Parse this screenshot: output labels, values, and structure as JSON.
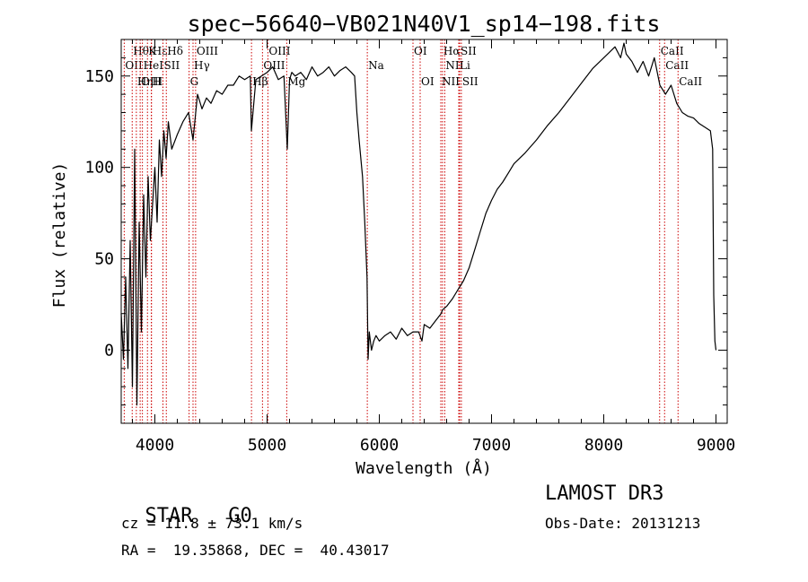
{
  "chart_data": {
    "type": "line",
    "title": "spec−56640−VB021N40V1_sp14−198.fits",
    "xlabel": "Wavelength (Å)",
    "ylabel": "Flux (relative)",
    "xlim": [
      3700,
      9100
    ],
    "ylim": [
      -40,
      170
    ],
    "xticks": [
      4000,
      5000,
      6000,
      7000,
      8000,
      9000
    ],
    "yticks": [
      0,
      50,
      100,
      150
    ],
    "series": [
      {
        "name": "flux",
        "x": [
          3700,
          3720,
          3740,
          3760,
          3780,
          3800,
          3820,
          3840,
          3860,
          3880,
          3900,
          3920,
          3940,
          3960,
          3980,
          4000,
          4020,
          4040,
          4060,
          4080,
          4100,
          4120,
          4150,
          4200,
          4250,
          4300,
          4340,
          4380,
          4420,
          4460,
          4500,
          4550,
          4600,
          4650,
          4700,
          4750,
          4800,
          4850,
          4860,
          4900,
          4950,
          5000,
          5050,
          5100,
          5150,
          5180,
          5200,
          5220,
          5250,
          5300,
          5350,
          5400,
          5450,
          5500,
          5550,
          5600,
          5650,
          5700,
          5750,
          5780,
          5800,
          5820,
          5850,
          5870,
          5890,
          5900,
          5910,
          5930,
          5950,
          5970,
          6000,
          6050,
          6100,
          6150,
          6200,
          6250,
          6300,
          6350,
          6380,
          6400,
          6450,
          6500,
          6550,
          6563,
          6600,
          6650,
          6700,
          6750,
          6800,
          6850,
          6900,
          6950,
          7000,
          7050,
          7100,
          7150,
          7200,
          7300,
          7400,
          7500,
          7600,
          7700,
          7800,
          7900,
          8000,
          8050,
          8100,
          8150,
          8180,
          8200,
          8250,
          8300,
          8350,
          8400,
          8450,
          8500,
          8550,
          8600,
          8650,
          8700,
          8750,
          8800,
          8850,
          8900,
          8950,
          8970,
          8980,
          8990,
          9000
        ],
        "y": [
          20,
          -5,
          40,
          -10,
          60,
          -20,
          110,
          -30,
          70,
          10,
          85,
          40,
          95,
          60,
          80,
          100,
          70,
          115,
          95,
          120,
          105,
          125,
          110,
          118,
          125,
          130,
          115,
          140,
          132,
          138,
          135,
          142,
          140,
          145,
          145,
          150,
          148,
          150,
          120,
          148,
          150,
          152,
          155,
          148,
          150,
          110,
          148,
          152,
          150,
          152,
          148,
          155,
          150,
          152,
          155,
          150,
          153,
          155,
          152,
          150,
          130,
          115,
          95,
          70,
          40,
          -5,
          10,
          0,
          5,
          8,
          5,
          8,
          10,
          6,
          12,
          8,
          10,
          10,
          5,
          14,
          12,
          16,
          20,
          22,
          24,
          28,
          33,
          38,
          45,
          55,
          65,
          75,
          82,
          88,
          92,
          97,
          102,
          108,
          115,
          123,
          130,
          138,
          146,
          154,
          160,
          163,
          166,
          160,
          168,
          162,
          158,
          152,
          158,
          150,
          160,
          145,
          140,
          145,
          135,
          130,
          128,
          127,
          124,
          122,
          120,
          110,
          30,
          5,
          0
        ]
      }
    ],
    "lines": [
      {
        "name": "Hε",
        "x": 3970,
        "side": "top",
        "row": 0
      },
      {
        "name": "Hθ",
        "x": 3798,
        "side": "top",
        "row": 0
      },
      {
        "name": "K",
        "x": 3934,
        "side": "top",
        "row": 0
      },
      {
        "name": "Hδ",
        "x": 4102,
        "side": "top",
        "row": 0
      },
      {
        "name": "OIII",
        "x": 4363,
        "side": "top",
        "row": 0
      },
      {
        "name": "OIII",
        "x": 5007,
        "side": "top",
        "row": 0
      },
      {
        "name": "OI",
        "x": 6300,
        "side": "top",
        "row": 0
      },
      {
        "name": "Hα",
        "x": 6563,
        "side": "top",
        "row": 0
      },
      {
        "name": "SII",
        "x": 6716,
        "side": "top",
        "row": 0
      },
      {
        "name": "CaII",
        "x": 8498,
        "side": "top",
        "row": 0
      },
      {
        "name": "OII",
        "x": 3727,
        "side": "top",
        "row": 1
      },
      {
        "name": "HeI",
        "x": 3889,
        "side": "top",
        "row": 1
      },
      {
        "name": "SII",
        "x": 4072,
        "side": "top",
        "row": 1
      },
      {
        "name": "Hγ",
        "x": 4340,
        "side": "top",
        "row": 1
      },
      {
        "name": "OIII",
        "x": 4959,
        "side": "top",
        "row": 1
      },
      {
        "name": "Na",
        "x": 5893,
        "side": "top",
        "row": 1
      },
      {
        "name": "NII",
        "x": 6583,
        "side": "top",
        "row": 1
      },
      {
        "name": "Li",
        "x": 6708,
        "side": "top",
        "row": 1
      },
      {
        "name": "CaII",
        "x": 8542,
        "side": "top",
        "row": 1
      },
      {
        "name": "OIII",
        "x": 3869,
        "side": "top",
        "row": 2
      },
      {
        "name": "Hη",
        "x": 3835,
        "side": "top",
        "row": 2
      },
      {
        "name": "H",
        "x": 3968,
        "side": "top",
        "row": 2
      },
      {
        "name": "G",
        "x": 4305,
        "side": "top",
        "row": 2
      },
      {
        "name": "Hβ",
        "x": 4861,
        "side": "top",
        "row": 2
      },
      {
        "name": "Mg",
        "x": 5175,
        "side": "top",
        "row": 2
      },
      {
        "name": "OI",
        "x": 6364,
        "side": "top",
        "row": 2
      },
      {
        "name": "NII",
        "x": 6548,
        "side": "top",
        "row": 2
      },
      {
        "name": "SII",
        "x": 6731,
        "side": "top",
        "row": 2
      },
      {
        "name": "CaII",
        "x": 8662,
        "side": "top",
        "row": 2
      }
    ]
  },
  "info": {
    "class_label": "STAR",
    "subclass": "G0",
    "survey": "LAMOST DR3",
    "cz": "cz = 11.8 ± 73.1 km/s",
    "obs_date": "Obs-Date: 20131213",
    "radec": "RA =  19.35868, DEC =  40.43017"
  },
  "colors": {
    "line": "#000000",
    "marker": "#cc0000"
  }
}
